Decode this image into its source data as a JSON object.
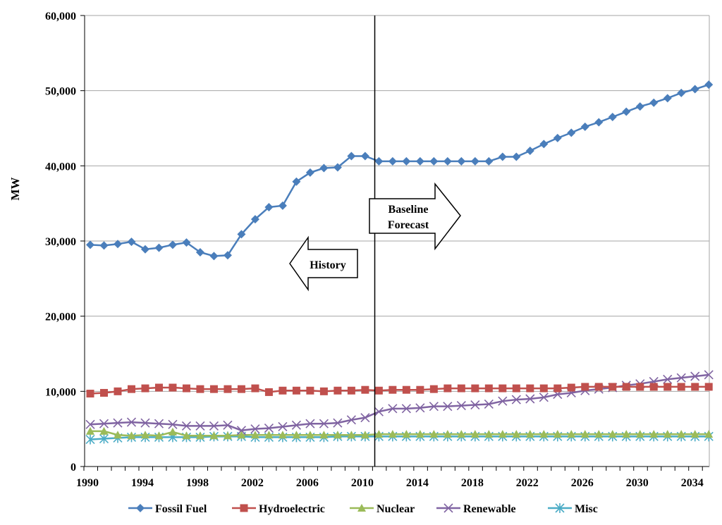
{
  "chart_data": {
    "type": "line",
    "title": "",
    "xlabel": "",
    "ylabel": "MW",
    "xlim": [
      1990,
      2035
    ],
    "ylim": [
      0,
      60000
    ],
    "yticks": [
      0,
      10000,
      20000,
      30000,
      40000,
      50000,
      60000
    ],
    "ytick_labels": [
      "0",
      "10,000",
      "20,000",
      "30,000",
      "40,000",
      "50,000",
      "60,000"
    ],
    "xticks": [
      1990,
      1994,
      1998,
      2002,
      2006,
      2010,
      2014,
      2018,
      2022,
      2026,
      2030,
      2034
    ],
    "xtick_labels": [
      "1990",
      "1994",
      "1998",
      "2002",
      "2006",
      "2010",
      "2014",
      "2018",
      "2022",
      "2026",
      "2030",
      "2034"
    ],
    "grid": "horizontal",
    "legend": "bottom",
    "divider_year": 2010.7,
    "annotations": {
      "history": "History",
      "forecast_line1": "Baseline",
      "forecast_line2": "Forecast"
    },
    "x": [
      1990,
      1991,
      1992,
      1993,
      1994,
      1995,
      1996,
      1997,
      1998,
      1999,
      2000,
      2001,
      2002,
      2003,
      2004,
      2005,
      2006,
      2007,
      2008,
      2009,
      2010,
      2011,
      2012,
      2013,
      2014,
      2015,
      2016,
      2017,
      2018,
      2019,
      2020,
      2021,
      2022,
      2023,
      2024,
      2025,
      2026,
      2027,
      2028,
      2029,
      2030,
      2031,
      2032,
      2033,
      2034,
      2035
    ],
    "series": [
      {
        "name": "Fossil Fuel",
        "color": "#4a7ebb",
        "marker": "diamond",
        "values": [
          29500,
          29400,
          29600,
          29900,
          28900,
          29100,
          29500,
          29800,
          28500,
          28000,
          28100,
          30900,
          32900,
          34500,
          34700,
          37900,
          39100,
          39700,
          39800,
          41300,
          41300,
          40600,
          40600,
          40600,
          40600,
          40600,
          40600,
          40600,
          40600,
          40600,
          41200,
          41200,
          42000,
          42900,
          43700,
          44400,
          45200,
          45800,
          46500,
          47200,
          47900,
          48400,
          49000,
          49700,
          50200,
          50800
        ]
      },
      {
        "name": "Hydroelectric",
        "color": "#c0504d",
        "marker": "square",
        "values": [
          9700,
          9800,
          10000,
          10300,
          10400,
          10500,
          10500,
          10400,
          10300,
          10300,
          10300,
          10300,
          10400,
          9900,
          10100,
          10100,
          10100,
          10000,
          10100,
          10100,
          10200,
          10100,
          10200,
          10200,
          10200,
          10300,
          10400,
          10400,
          10400,
          10400,
          10400,
          10400,
          10400,
          10400,
          10400,
          10500,
          10600,
          10600,
          10600,
          10600,
          10600,
          10600,
          10600,
          10600,
          10600,
          10600
        ]
      },
      {
        "name": "Nuclear",
        "color": "#9bbb59",
        "marker": "triangle",
        "values": [
          4700,
          4700,
          4200,
          4100,
          4200,
          4100,
          4600,
          4100,
          4100,
          4100,
          4100,
          4200,
          4200,
          4200,
          4200,
          4200,
          4200,
          4200,
          4200,
          4200,
          4200,
          4300,
          4300,
          4300,
          4300,
          4300,
          4300,
          4300,
          4300,
          4300,
          4300,
          4300,
          4300,
          4300,
          4300,
          4300,
          4300,
          4300,
          4300,
          4300,
          4300,
          4300,
          4300,
          4300,
          4300,
          4300
        ]
      },
      {
        "name": "Renewable",
        "color": "#8064a2",
        "marker": "x",
        "values": [
          5600,
          5700,
          5800,
          5900,
          5800,
          5700,
          5600,
          5400,
          5400,
          5400,
          5500,
          4800,
          5000,
          5100,
          5300,
          5500,
          5700,
          5700,
          5800,
          6200,
          6500,
          7300,
          7700,
          7700,
          7800,
          8000,
          8000,
          8100,
          8200,
          8300,
          8700,
          8900,
          9000,
          9200,
          9600,
          9800,
          10100,
          10300,
          10500,
          10800,
          11000,
          11300,
          11600,
          11800,
          12000,
          12200
        ]
      },
      {
        "name": "Misc",
        "color": "#4bacc6",
        "marker": "asterisk",
        "values": [
          3600,
          3700,
          3800,
          3900,
          3900,
          3900,
          3900,
          3900,
          3900,
          4000,
          4000,
          4000,
          3900,
          3900,
          3900,
          3900,
          3900,
          3900,
          4000,
          4000,
          4000,
          4000,
          4000,
          4000,
          4000,
          4000,
          4000,
          4000,
          4000,
          4000,
          4000,
          4000,
          4000,
          4000,
          4000,
          4000,
          4000,
          4000,
          4000,
          4000,
          4000,
          4000,
          4000,
          4000,
          4000,
          4000
        ]
      }
    ]
  }
}
